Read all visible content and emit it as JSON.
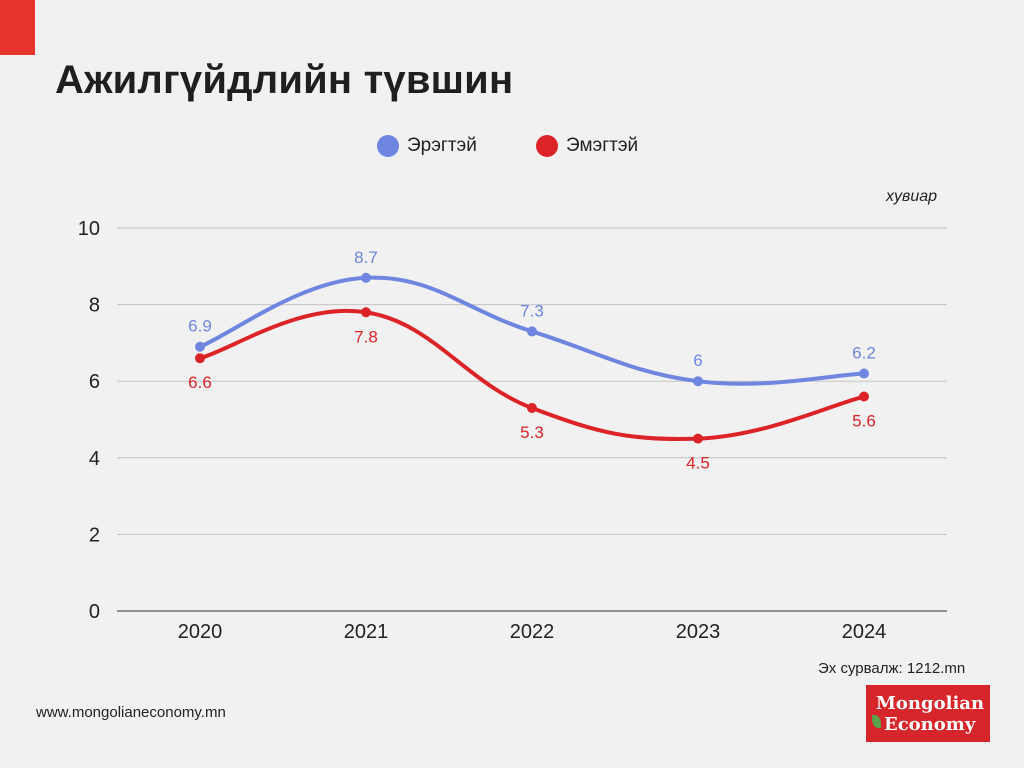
{
  "title": "Ажилгүйдлийн түвшин",
  "unit_label": "хувиар",
  "source": "Эх сурвалж: 1212.mn",
  "website": "www.mongolianeconomy.mn",
  "logo": {
    "line1": "Mongolian",
    "line2": "Economy"
  },
  "colors": {
    "accent": "#e5342c",
    "men": "#6f86e0",
    "women": "#dc2328",
    "logo_bg": "#d7262b"
  },
  "chart_data": {
    "type": "line",
    "title": "Ажилгүйдлийн түвшин",
    "xlabel": "",
    "ylabel": "хувиар",
    "categories": [
      "2020",
      "2021",
      "2022",
      "2023",
      "2024"
    ],
    "ylim": [
      0,
      10
    ],
    "yticks": [
      0,
      2,
      4,
      6,
      8,
      10
    ],
    "grid": true,
    "legend_position": "top-center",
    "smooth": true,
    "series": [
      {
        "name": "Эрэгтэй",
        "color": "#6f86e0",
        "values": [
          6.9,
          8.7,
          7.3,
          6,
          6.2
        ],
        "labels": [
          "6.9",
          "8.7",
          "7.3",
          "6",
          "6.2"
        ],
        "label_position": "above"
      },
      {
        "name": "Эмэгтэй",
        "color": "#dc2328",
        "values": [
          6.6,
          7.8,
          5.3,
          4.5,
          5.6
        ],
        "labels": [
          "6.6",
          "7.8",
          "5.3",
          "4.5",
          "5.6"
        ],
        "label_position": "below"
      }
    ]
  }
}
